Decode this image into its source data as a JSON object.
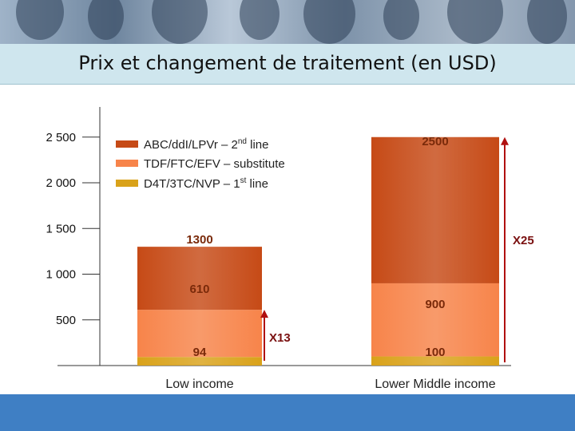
{
  "title": "Prix et changement de traitement (en USD)",
  "chart_data": {
    "type": "bar",
    "stacked": true,
    "categories": [
      "Low income",
      "Lower Middle income"
    ],
    "series": [
      {
        "name": "D4T/3TC/NVP – 1st line",
        "values": [
          94,
          100
        ],
        "color": "#d9a21a"
      },
      {
        "name": "TDF/FTC/EFV – substitute",
        "values": [
          516,
          800
        ],
        "color": "#f7844a"
      },
      {
        "name": "ABC/ddI/LPVr – 2nd line",
        "values": [
          690,
          1600
        ],
        "color": "#c64a16"
      }
    ],
    "bar_labels": [
      {
        "category": "Low income",
        "texts": [
          "94",
          "610",
          "1300"
        ]
      },
      {
        "category": "Lower Middle income",
        "texts": [
          "100",
          "900",
          "2500"
        ]
      }
    ],
    "y_ticks": [
      {
        "value": 500,
        "label": "500"
      },
      {
        "value": 1000,
        "label": "1 000"
      },
      {
        "value": 1500,
        "label": "1 500"
      },
      {
        "value": 2000,
        "label": "2 000"
      },
      {
        "value": 2500,
        "label": "2 500"
      }
    ],
    "legend": [
      {
        "main": "ABC/ddI/LPVr – 2",
        "sup": "nd",
        "rest": " line",
        "color": "#c64a16"
      },
      {
        "main": "TDF/FTC/EFV – substitute",
        "sup": "",
        "rest": "",
        "color": "#f7844a"
      },
      {
        "main": "D4T/3TC/NVP – 1",
        "sup": "st",
        "rest": " line",
        "color": "#d9a21a"
      }
    ],
    "legend_position": "top-left",
    "annotations": [
      {
        "label": "X13",
        "category": "Low income",
        "from": 94,
        "to": 610
      },
      {
        "label": "X25",
        "category": "Lower Middle income",
        "from": 100,
        "to": 2500
      }
    ],
    "ylim": [
      0,
      2800
    ],
    "grid": false,
    "xlabel": "",
    "ylabel": ""
  }
}
